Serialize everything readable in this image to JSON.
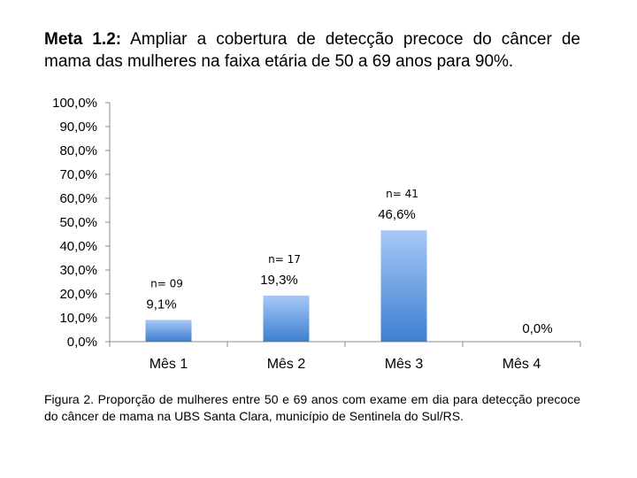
{
  "header": {
    "title_lead": "Meta 1.2:",
    "title_text": "Ampliar a cobertura de detecção precoce do câncer de mama das mulheres na faixa etária de 50 a 69 anos para 90%."
  },
  "footer": {
    "caption_lead": "Figura 2.",
    "caption_text": "Proporção de mulheres entre 50 e 69 anos com exame em dia para detecção precoce do câncer de mama na UBS Santa Clara, município de Sentinela do Sul/RS."
  },
  "colors": {
    "bar_top": "#a7c8f7",
    "bar_bottom": "#3d7fd0",
    "axis": "#8c8c8c"
  },
  "chart_data": {
    "type": "bar",
    "categories": [
      "Mês 1",
      "Mês 2",
      "Mês 3",
      "Mês 4"
    ],
    "values": [
      9.1,
      19.3,
      46.6,
      0.0
    ],
    "value_labels": [
      "9,1%",
      "19,3%",
      "46,6%",
      "0,0%"
    ],
    "n_labels": [
      "n= 09",
      "n= 17",
      "n= 41",
      ""
    ],
    "ylim": [
      0,
      100
    ],
    "yticks": [
      0,
      10,
      20,
      30,
      40,
      50,
      60,
      70,
      80,
      90,
      100
    ],
    "ytick_labels": [
      "0,0%",
      "10,0%",
      "20,0%",
      "30,0%",
      "40,0%",
      "50,0%",
      "60,0%",
      "70,0%",
      "80,0%",
      "90,0%",
      "100,0%"
    ],
    "grid": false
  }
}
